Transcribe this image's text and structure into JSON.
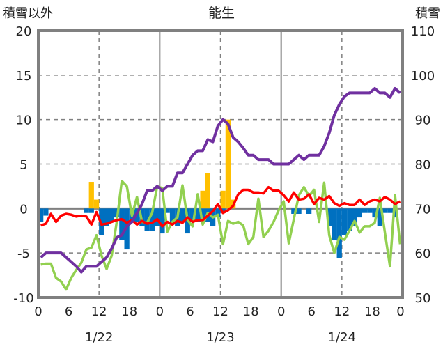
{
  "chart_data": {
    "type": "bar+line",
    "title": "能生",
    "ylabel_left": "積雪以外",
    "ylabel_right": "積雪",
    "ylim_left": [
      -10,
      20
    ],
    "ylim_right": [
      50,
      110
    ],
    "yticks_left": [
      "20",
      "15",
      "10",
      "5",
      "0",
      "-5",
      "-10"
    ],
    "yticks_right": [
      "110",
      "100",
      "90",
      "80",
      "70",
      "60",
      "50"
    ],
    "xticks": [
      "0",
      "6",
      "12",
      "18",
      "0",
      "6",
      "12",
      "18",
      "0",
      "6",
      "12",
      "18",
      "0"
    ],
    "date_labels": [
      "1/22",
      "1/23",
      "1/24"
    ],
    "x_hours": 72,
    "grid": true,
    "colors": {
      "snow_depth": "#7030a0",
      "red_line": "#ff0000",
      "green_line": "#92d050",
      "orange_bars": "#ffc000",
      "blue_bars": "#0070c0",
      "axis": "#808080"
    },
    "series": [
      {
        "name": "snow_depth",
        "axis": "right",
        "type": "line",
        "values": [
          59,
          60,
          60,
          60,
          60,
          59,
          58,
          57,
          55.7,
          57,
          57,
          57,
          58,
          59,
          61,
          63.5,
          64,
          66,
          67,
          69,
          71,
          74,
          74,
          75,
          74,
          75,
          75,
          78,
          78,
          80,
          82,
          83,
          83,
          85.5,
          85,
          88.6,
          90,
          89,
          86,
          85,
          83.6,
          82,
          82,
          81,
          81,
          81,
          80,
          80,
          80,
          80,
          81,
          82,
          81,
          82,
          82,
          82,
          84,
          87,
          91,
          93.4,
          95.2,
          96,
          96,
          96,
          96,
          96,
          97,
          96,
          96,
          95,
          97,
          96
        ]
      },
      {
        "name": "red_line",
        "axis": "left",
        "type": "line",
        "values": [
          -1.9,
          -1.7,
          -0.6,
          -1.5,
          -0.8,
          -0.6,
          -0.7,
          -0.9,
          -0.8,
          -0.9,
          -1.8,
          -0.4,
          -1.8,
          -1.7,
          -1.5,
          -1.3,
          -1.2,
          -1.6,
          -1.3,
          -1.8,
          -1.4,
          -1.7,
          -1.6,
          -1.2,
          -2.0,
          -1.5,
          -1.8,
          -1.4,
          -1.6,
          -1.0,
          -1.5,
          -1.3,
          -1.3,
          -0.8,
          -0.3,
          0.5,
          -0.5,
          -0.2,
          0.3,
          1.6,
          2.1,
          2.1,
          1.8,
          1.8,
          1.7,
          2.4,
          2.0,
          2.0,
          1.5,
          0.8,
          1.8,
          1.0,
          1.1,
          1.6,
          0.5,
          1.2,
          1.0,
          1.4,
          0.6,
          0.3,
          0.6,
          0.4,
          0.4,
          1.0,
          0.4,
          0.8,
          1.0,
          0.8,
          1.3,
          1.0,
          0.5,
          0.8
        ]
      },
      {
        "name": "green_line",
        "axis": "left",
        "type": "line",
        "values": [
          -6.3,
          -6.2,
          -6.2,
          -7.8,
          -8.2,
          -9.1,
          -7.8,
          -6.9,
          -6.1,
          -4.6,
          -4.4,
          -3.0,
          -5.3,
          -6.8,
          -5.3,
          -1.5,
          3.1,
          2.5,
          -0.8,
          1.3,
          -1.5,
          -1.6,
          -0.5,
          2.5,
          2.3,
          -2.6,
          -1.5,
          -1.0,
          2.6,
          -1.3,
          -2.0,
          1.6,
          -1.8,
          -0.5,
          -1.0,
          -0.7,
          -4.0,
          -1.4,
          -1.7,
          -1.5,
          -1.9,
          -4.0,
          -3.2,
          1.1,
          -3.2,
          -2.5,
          -1.5,
          -0.2,
          0.8,
          -3.9,
          -1.2,
          1.5,
          2.4,
          1.4,
          2.1,
          -1.5,
          2.9,
          -3.0,
          -5.0,
          -3.2,
          -3.5,
          -2.5,
          -1.4,
          -2.7,
          -2.0,
          -2.0,
          -1.6,
          1.2,
          -2.7,
          -6.5,
          1.5,
          -4.0
        ]
      },
      {
        "name": "orange_bars",
        "axis": "left",
        "type": "bar",
        "values": [
          0,
          0,
          0,
          0,
          0,
          0,
          0,
          0,
          0,
          0,
          3.0,
          1.0,
          0,
          0,
          0,
          0,
          0,
          0,
          0,
          0,
          0,
          0,
          0,
          0,
          0,
          0,
          0,
          0,
          0,
          0,
          0,
          0,
          2.0,
          4.0,
          0,
          0,
          2.0,
          10.0,
          1.0,
          0,
          0,
          0,
          0,
          0,
          0,
          0,
          0,
          0,
          0,
          0,
          0,
          0,
          0,
          0,
          0,
          0,
          0,
          0,
          0,
          0,
          0,
          0,
          0,
          0,
          0,
          0,
          0,
          0,
          0,
          0,
          0,
          0
        ]
      },
      {
        "name": "blue_bars",
        "axis": "left",
        "type": "bar",
        "values": [
          -1.5,
          -0.8,
          0,
          0,
          0,
          0,
          0,
          0,
          0,
          -0.5,
          -0.5,
          0,
          -3.0,
          -2.0,
          -1.5,
          -1.0,
          -3.5,
          -4.6,
          -1.5,
          -1.5,
          -2.0,
          -2.5,
          -2.5,
          -2.0,
          -2.8,
          -0.5,
          -1.7,
          -2.0,
          -1.5,
          -2.8,
          -1.5,
          -1.5,
          -1.5,
          -1.5,
          -2.0,
          -1.0,
          -0.5,
          0,
          0,
          0,
          0,
          0,
          0,
          0,
          0,
          0,
          0,
          0,
          0,
          0,
          -0.6,
          -0.6,
          0,
          -0.6,
          0,
          0,
          0,
          -2.0,
          -3.5,
          -5.6,
          -3.0,
          -2.5,
          -2.0,
          -1.0,
          -0.5,
          -0.5,
          -1.0,
          -2.0,
          -0.5,
          -0.5,
          -1.0,
          0
        ]
      }
    ]
  }
}
